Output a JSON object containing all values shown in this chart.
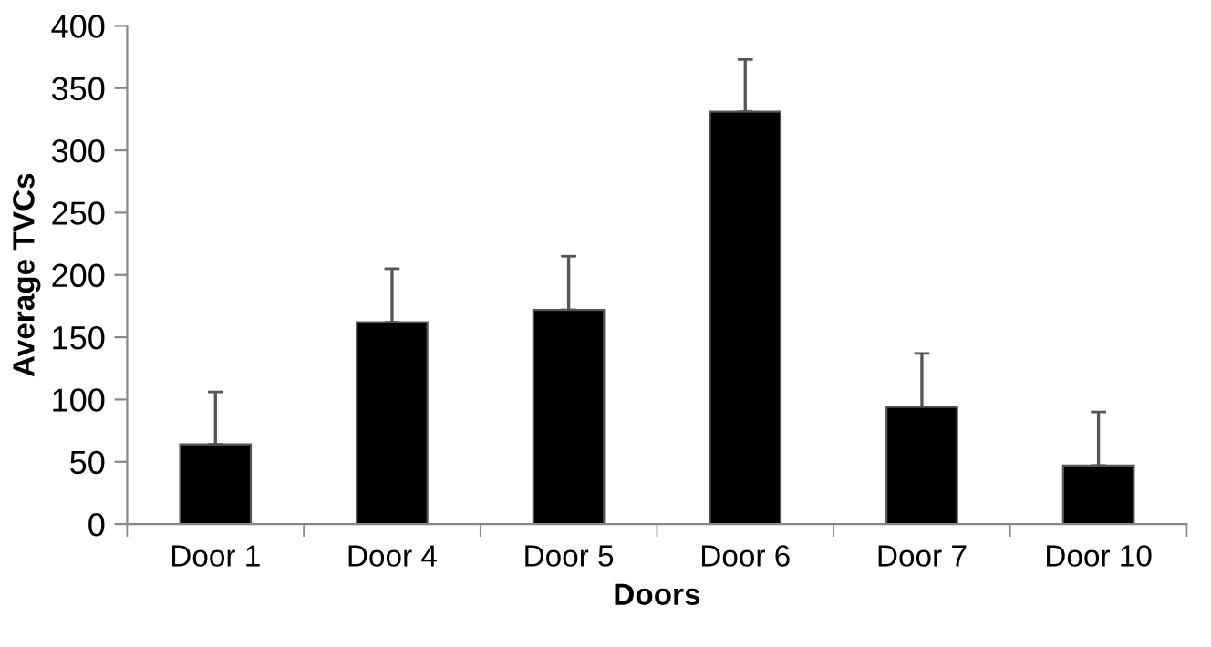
{
  "chart_data": {
    "type": "bar",
    "xlabel": "Doors",
    "ylabel": "Average TVCs",
    "categories": [
      "Door 1",
      "Door 4",
      "Door 5",
      "Door 6",
      "Door 7",
      "Door 10"
    ],
    "values": [
      64,
      162,
      172,
      331,
      94,
      47
    ],
    "errors": [
      [
        64,
        106
      ],
      [
        162,
        205
      ],
      [
        172,
        215
      ],
      [
        331,
        373
      ],
      [
        94,
        137
      ],
      [
        47,
        90
      ]
    ],
    "color": "#000000",
    "ylim": [
      0,
      400
    ],
    "yticks": [
      0,
      50,
      100,
      150,
      200,
      250,
      300,
      350,
      400
    ],
    "grid": false,
    "legend": false
  }
}
